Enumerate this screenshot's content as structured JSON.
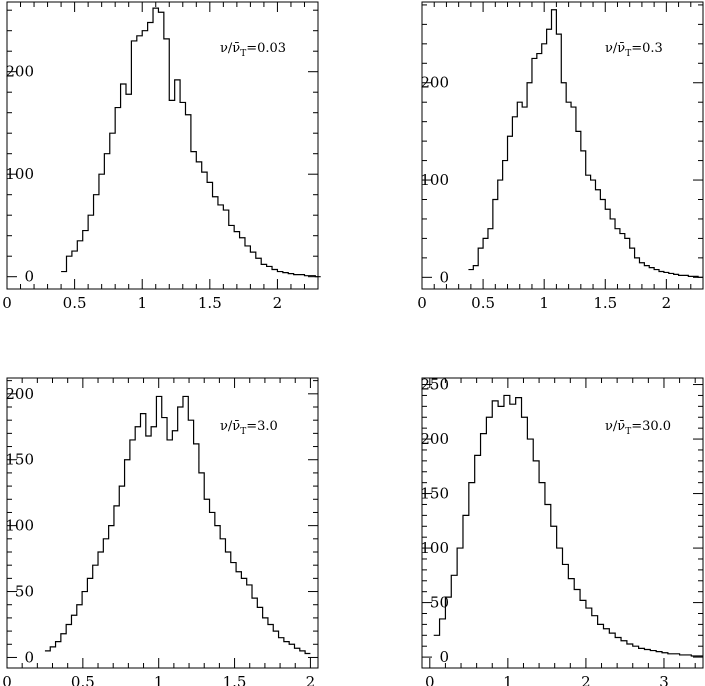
{
  "chart_data": [
    {
      "type": "histogram",
      "annotation": {
        "prefix": "ν/ν̄",
        "sub": "T",
        "value": "=0.03"
      },
      "xlim": [
        0,
        2.3
      ],
      "ylim": [
        -12,
        268
      ],
      "xticks": [
        0,
        0.5,
        1,
        1.5,
        2
      ],
      "xtick_labels": [
        "0",
        "0.5",
        "1",
        "1.5",
        "2"
      ],
      "yticks": [
        0,
        100,
        200
      ],
      "ytick_labels": [
        "0",
        "100",
        "200"
      ],
      "bin_start": 0.4,
      "bin_width": 0.04,
      "values": [
        5,
        20,
        25,
        35,
        45,
        60,
        80,
        100,
        120,
        140,
        165,
        188,
        178,
        230,
        235,
        240,
        248,
        262,
        258,
        232,
        172,
        192,
        170,
        158,
        122,
        112,
        102,
        92,
        78,
        70,
        65,
        50,
        44,
        38,
        30,
        24,
        18,
        12,
        10,
        7,
        5,
        4,
        3,
        2,
        2,
        1,
        1,
        0
      ]
    },
    {
      "type": "histogram",
      "annotation": {
        "prefix": "ν/ν̄",
        "sub": "T",
        "value": "=0.3"
      },
      "xlim": [
        0,
        2.3
      ],
      "ylim": [
        -12,
        283
      ],
      "xticks": [
        0,
        0.5,
        1,
        1.5,
        2
      ],
      "xtick_labels": [
        "0",
        "0.5",
        "1",
        "1.5",
        "2"
      ],
      "yticks": [
        0,
        100,
        200
      ],
      "ytick_labels": [
        "0",
        "100",
        "200"
      ],
      "bin_start": 0.38,
      "bin_width": 0.04,
      "values": [
        8,
        12,
        30,
        40,
        50,
        80,
        100,
        120,
        145,
        165,
        180,
        175,
        200,
        225,
        230,
        240,
        255,
        275,
        250,
        200,
        180,
        175,
        150,
        130,
        105,
        100,
        90,
        80,
        70,
        60,
        50,
        45,
        40,
        30,
        20,
        15,
        12,
        10,
        8,
        6,
        5,
        4,
        3,
        2,
        2,
        1,
        1,
        0
      ]
    },
    {
      "type": "histogram",
      "annotation": {
        "prefix": "ν/ν̄",
        "sub": "T",
        "value": "=3.0"
      },
      "xlim": [
        0,
        2.05
      ],
      "ylim": [
        -8,
        212
      ],
      "xticks": [
        0,
        0.5,
        1,
        1.5,
        2
      ],
      "xtick_labels": [
        "0",
        "0.5",
        "1",
        "1.5",
        "2"
      ],
      "yticks": [
        0,
        50,
        100,
        150,
        200
      ],
      "ytick_labels": [
        "0",
        "50",
        "100",
        "150",
        "200"
      ],
      "bin_start": 0.25,
      "bin_width": 0.035,
      "values": [
        5,
        8,
        12,
        18,
        25,
        32,
        40,
        50,
        60,
        70,
        80,
        90,
        100,
        115,
        130,
        150,
        165,
        175,
        185,
        168,
        175,
        198,
        182,
        165,
        172,
        190,
        198,
        180,
        162,
        140,
        120,
        110,
        100,
        90,
        80,
        72,
        65,
        60,
        55,
        45,
        38,
        30,
        25,
        20,
        15,
        12,
        10,
        7,
        5,
        3
      ]
    },
    {
      "type": "histogram",
      "annotation": {
        "prefix": "ν/ν̄",
        "sub": "T",
        "value": "=30.0"
      },
      "xlim": [
        -0.1,
        3.5
      ],
      "ylim": [
        -10,
        256
      ],
      "xticks": [
        0,
        1,
        2,
        3
      ],
      "xtick_labels": [
        "0",
        "1",
        "2",
        "3"
      ],
      "yticks": [
        0,
        50,
        100,
        150,
        200,
        250
      ],
      "ytick_labels": [
        "0",
        "50",
        "100",
        "150",
        "200",
        "250"
      ],
      "bin_start": 0.05,
      "bin_width": 0.075,
      "values": [
        20,
        35,
        55,
        75,
        100,
        130,
        160,
        185,
        205,
        220,
        235,
        230,
        240,
        232,
        238,
        220,
        200,
        180,
        160,
        140,
        120,
        100,
        85,
        72,
        62,
        52,
        45,
        38,
        30,
        26,
        22,
        18,
        15,
        12,
        10,
        8,
        7,
        6,
        5,
        4,
        3,
        3,
        2,
        2,
        1,
        1
      ]
    }
  ]
}
